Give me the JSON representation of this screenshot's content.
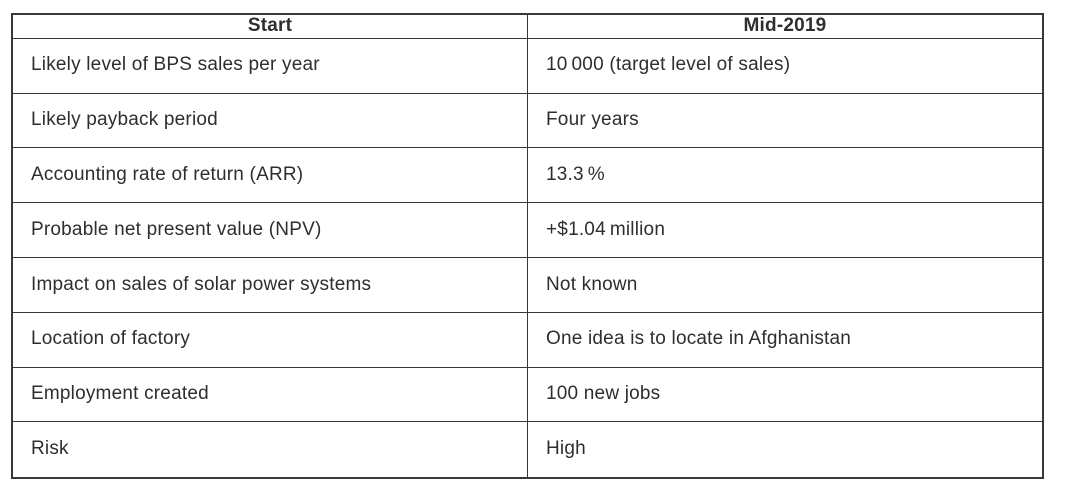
{
  "table": {
    "headers": [
      "Start",
      "Mid-2019"
    ],
    "rows": [
      {
        "label": "Likely level of BPS sales per year",
        "value": "10 000 (target level of sales)"
      },
      {
        "label": "Likely payback period",
        "value": "Four years"
      },
      {
        "label": "Accounting rate of return (ARR)",
        "value": "13.3 %"
      },
      {
        "label": "Probable net present value (NPV)",
        "value": "+$1.04 million"
      },
      {
        "label": "Impact on sales of solar power systems",
        "value": "Not known"
      },
      {
        "label": "Location of factory",
        "value": "One idea is to locate in Afghanistan"
      },
      {
        "label": "Employment created",
        "value": "100 new jobs"
      },
      {
        "label": "Risk",
        "value": "High"
      }
    ],
    "colors": {
      "border": "#383838",
      "text": "#2e2e2e",
      "background": "#ffffff"
    }
  }
}
